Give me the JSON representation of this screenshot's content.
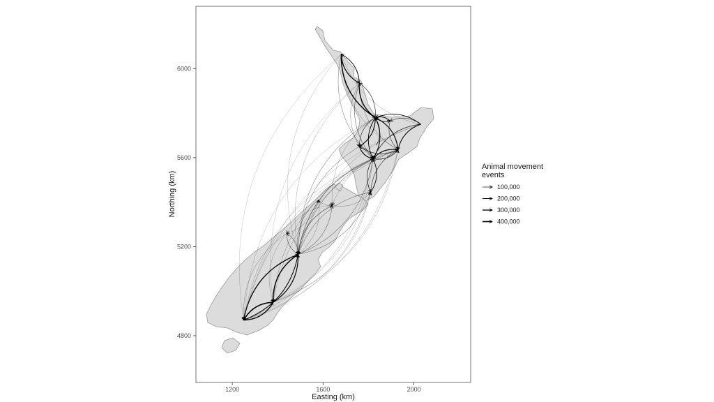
{
  "chart_data": {
    "type": "flow-map",
    "xlabel": "Easting (km)",
    "ylabel": "Northing (km)",
    "xlim": [
      1040,
      2250
    ],
    "ylim": [
      4590,
      6280
    ],
    "xticks": [
      1200,
      1600,
      2000
    ],
    "yticks": [
      4800,
      5200,
      5600,
      6000
    ],
    "grid": false,
    "legend": {
      "title_lines": [
        "Animal movement",
        "events"
      ],
      "placement": "right",
      "entries": [
        {
          "label": "100,000",
          "value": 100000
        },
        {
          "label": "200,000",
          "value": 200000
        },
        {
          "label": "300,000",
          "value": 300000
        },
        {
          "label": "400,000",
          "value": 400000
        }
      ]
    },
    "colors": {
      "land": "#dcdcdc",
      "coast": "#9a9a9a",
      "flow": "#000000",
      "panel_border": "#4d4d4d"
    },
    "nodes": {
      "NT": [
        1680,
        6065
      ],
      "AK": [
        1760,
        5935
      ],
      "WK": [
        1830,
        5780
      ],
      "BP": [
        1895,
        5765
      ],
      "GI": [
        2030,
        5750
      ],
      "TN": [
        1760,
        5650
      ],
      "RT": [
        1835,
        5655
      ],
      "HB": [
        1930,
        5635
      ],
      "MW": [
        1820,
        5595
      ],
      "WN": [
        1810,
        5445
      ],
      "NE": [
        1580,
        5410
      ],
      "MB": [
        1640,
        5385
      ],
      "WC": [
        1440,
        5260
      ],
      "CN": [
        1490,
        5165
      ],
      "OT": [
        1380,
        4950
      ],
      "SL": [
        1250,
        4870
      ]
    },
    "flows": [
      {
        "from": "NT",
        "to": "AK",
        "value": 280000
      },
      {
        "from": "AK",
        "to": "NT",
        "value": 180000
      },
      {
        "from": "NT",
        "to": "WK",
        "value": 340000
      },
      {
        "from": "AK",
        "to": "WK",
        "value": 300000
      },
      {
        "from": "WK",
        "to": "AK",
        "value": 120000
      },
      {
        "from": "BP",
        "to": "WK",
        "value": 200000
      },
      {
        "from": "WK",
        "to": "BP",
        "value": 150000
      },
      {
        "from": "GI",
        "to": "WK",
        "value": 160000
      },
      {
        "from": "GI",
        "to": "HB",
        "value": 210000
      },
      {
        "from": "GI",
        "to": "BP",
        "value": 90000
      },
      {
        "from": "HB",
        "to": "MW",
        "value": 260000
      },
      {
        "from": "MW",
        "to": "HB",
        "value": 140000
      },
      {
        "from": "TN",
        "to": "WK",
        "value": 230000
      },
      {
        "from": "WK",
        "to": "TN",
        "value": 110000
      },
      {
        "from": "TN",
        "to": "MW",
        "value": 240000
      },
      {
        "from": "MW",
        "to": "TN",
        "value": 100000
      },
      {
        "from": "RT",
        "to": "WK",
        "value": 120000
      },
      {
        "from": "HB",
        "to": "WK",
        "value": 270000
      },
      {
        "from": "MW",
        "to": "WK",
        "value": 220000
      },
      {
        "from": "WK",
        "to": "MW",
        "value": 180000
      },
      {
        "from": "WN",
        "to": "MW",
        "value": 170000
      },
      {
        "from": "MW",
        "to": "WN",
        "value": 130000
      },
      {
        "from": "HB",
        "to": "WN",
        "value": 110000
      },
      {
        "from": "TN",
        "to": "HB",
        "value": 120000
      },
      {
        "from": "GI",
        "to": "MW",
        "value": 140000
      },
      {
        "from": "BP",
        "to": "HB",
        "value": 100000
      },
      {
        "from": "NT",
        "to": "MW",
        "value": 60000
      },
      {
        "from": "AK",
        "to": "MW",
        "value": 80000
      },
      {
        "from": "AK",
        "to": "HB",
        "value": 50000
      },
      {
        "from": "AK",
        "to": "TN",
        "value": 50000
      },
      {
        "from": "NT",
        "to": "GI",
        "value": 30000
      },
      {
        "from": "NT",
        "to": "HB",
        "value": 35000
      },
      {
        "from": "NT",
        "to": "CN",
        "value": 20000
      },
      {
        "from": "NT",
        "to": "SL",
        "value": 15000
      },
      {
        "from": "AK",
        "to": "CN",
        "value": 30000
      },
      {
        "from": "AK",
        "to": "OT",
        "value": 15000
      },
      {
        "from": "WK",
        "to": "CN",
        "value": 50000
      },
      {
        "from": "WK",
        "to": "SL",
        "value": 20000
      },
      {
        "from": "GI",
        "to": "CN",
        "value": 30000
      },
      {
        "from": "GI",
        "to": "SL",
        "value": 20000
      },
      {
        "from": "HB",
        "to": "CN",
        "value": 60000
      },
      {
        "from": "HB",
        "to": "OT",
        "value": 30000
      },
      {
        "from": "HB",
        "to": "SL",
        "value": 30000
      },
      {
        "from": "MW",
        "to": "CN",
        "value": 90000
      },
      {
        "from": "CN",
        "to": "MW",
        "value": 60000
      },
      {
        "from": "MW",
        "to": "OT",
        "value": 40000
      },
      {
        "from": "MW",
        "to": "SL",
        "value": 30000
      },
      {
        "from": "WN",
        "to": "CN",
        "value": 70000
      },
      {
        "from": "CN",
        "to": "WN",
        "value": 60000
      },
      {
        "from": "TN",
        "to": "CN",
        "value": 50000
      },
      {
        "from": "WK",
        "to": "MB",
        "value": 30000
      },
      {
        "from": "MB",
        "to": "WN",
        "value": 40000
      },
      {
        "from": "HB",
        "to": "MB",
        "value": 30000
      },
      {
        "from": "MB",
        "to": "CN",
        "value": 90000
      },
      {
        "from": "CN",
        "to": "MB",
        "value": 70000
      },
      {
        "from": "NE",
        "to": "CN",
        "value": 60000
      },
      {
        "from": "CN",
        "to": "NE",
        "value": 40000
      },
      {
        "from": "NE",
        "to": "MB",
        "value": 40000
      },
      {
        "from": "WC",
        "to": "CN",
        "value": 80000
      },
      {
        "from": "CN",
        "to": "WC",
        "value": 70000
      },
      {
        "from": "WC",
        "to": "NE",
        "value": 30000
      },
      {
        "from": "MB",
        "to": "WC",
        "value": 30000
      },
      {
        "from": "CN",
        "to": "OT",
        "value": 330000
      },
      {
        "from": "OT",
        "to": "CN",
        "value": 260000
      },
      {
        "from": "CN",
        "to": "SL",
        "value": 300000
      },
      {
        "from": "SL",
        "to": "CN",
        "value": 220000
      },
      {
        "from": "OT",
        "to": "SL",
        "value": 380000
      },
      {
        "from": "SL",
        "to": "OT",
        "value": 320000
      },
      {
        "from": "SL",
        "to": "WN",
        "value": 30000
      },
      {
        "from": "OT",
        "to": "WN",
        "value": 30000
      },
      {
        "from": "SL",
        "to": "HB",
        "value": 25000
      },
      {
        "from": "OT",
        "to": "HB",
        "value": 30000
      },
      {
        "from": "WC",
        "to": "SL",
        "value": 40000
      },
      {
        "from": "WC",
        "to": "OT",
        "value": 30000
      },
      {
        "from": "SL",
        "to": "MW",
        "value": 30000
      },
      {
        "from": "OT",
        "to": "MW",
        "value": 25000
      }
    ]
  }
}
